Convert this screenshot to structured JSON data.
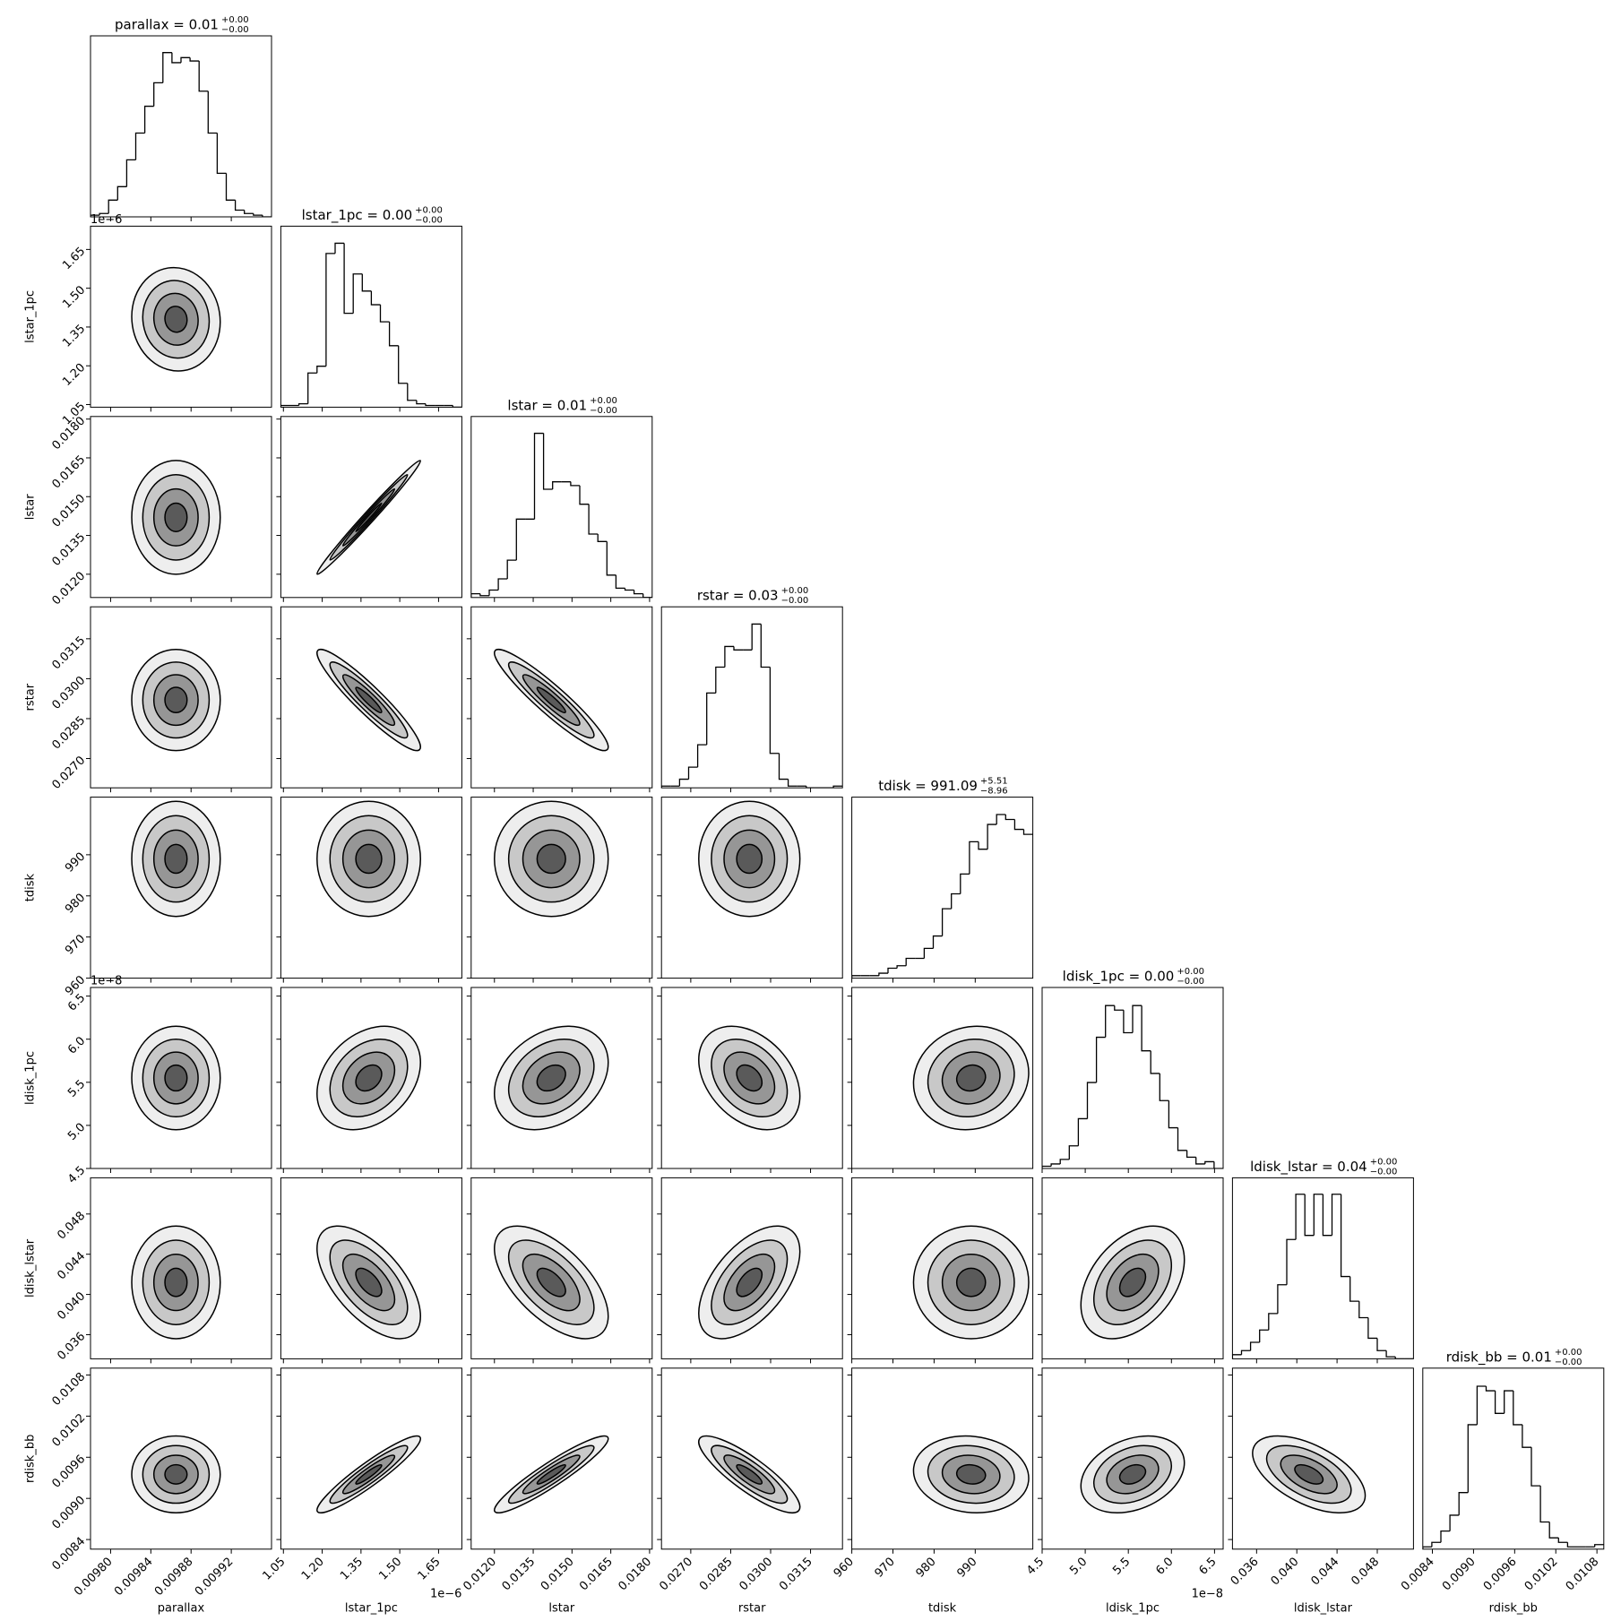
{
  "chart_data": {
    "type": "corner",
    "color": "#000000",
    "levels": [
      0.5,
      1,
      1.5,
      2
    ],
    "parameters": [
      {
        "name": "parallax",
        "title": {
          "text": "parallax = 0.01",
          "sup": "+0.00",
          "sub": "−0.00"
        },
        "xlim": [
          0.00978,
          0.00996
        ],
        "xticks": [
          {
            "value": 0.0098,
            "label": "0.00980"
          },
          0.00984,
          0.00988,
          0.00992
        ],
        "bins": [
          0.00978,
          0.009789,
          0.009798,
          0.009807,
          0.009816,
          0.009825,
          0.009834,
          0.009843,
          0.009852,
          0.009861,
          0.00987,
          0.009879,
          0.009888,
          0.009897,
          0.009906,
          0.009915,
          0.009924,
          0.009933,
          0.009942,
          0.009951,
          0.00996
        ],
        "counts": [
          1,
          2,
          10,
          18,
          34,
          50,
          66,
          80,
          98,
          92,
          95,
          93,
          75,
          50,
          26,
          10,
          4,
          2,
          1,
          0
        ],
        "ylim": [
          0,
          108
        ],
        "mean": 0.009865,
        "sd": 2.2e-05
      },
      {
        "name": "lstar_1pc",
        "title": {
          "text": "lstar_1pc = 0.00",
          "sup": "+0.00",
          "sub": "−0.00"
        },
        "offset_label": "1e−6",
        "xlim": [
          1.04,
          1.74
        ],
        "xticks": [
          1.05,
          {
            "value": 1.2,
            "label": "1.20"
          },
          1.35,
          {
            "value": 1.5,
            "label": "1.50"
          },
          1.65
        ],
        "bins": [
          1.04,
          1.075,
          1.11,
          1.145,
          1.18,
          1.215,
          1.25,
          1.285,
          1.32,
          1.355,
          1.39,
          1.425,
          1.46,
          1.495,
          1.53,
          1.565,
          1.6,
          1.635,
          1.67,
          1.705,
          1.74
        ],
        "counts": [
          1,
          1,
          2,
          20,
          24,
          90,
          96,
          55,
          78,
          68,
          60,
          50,
          36,
          14,
          4,
          2,
          1,
          1,
          1,
          0
        ],
        "ylim": [
          0,
          106
        ],
        "mean": 1.38,
        "sd": 0.1
      },
      {
        "name": "lstar",
        "title": {
          "text": "lstar = 0.01",
          "sup": "+0.00",
          "sub": "−0.00"
        },
        "xlim": [
          0.0111,
          0.0181
        ],
        "xticks": [
          {
            "value": 0.012,
            "label": "0.0120"
          },
          0.0135,
          {
            "value": 0.015,
            "label": "0.0150"
          },
          0.0165,
          {
            "value": 0.018,
            "label": "0.0180"
          }
        ],
        "bins": [
          0.0111,
          0.01145,
          0.0118,
          0.01215,
          0.0125,
          0.01285,
          0.0132,
          0.01355,
          0.0139,
          0.01425,
          0.0146,
          0.01495,
          0.0153,
          0.01565,
          0.016,
          0.01635,
          0.0167,
          0.01705,
          0.0174,
          0.01775,
          0.0181
        ],
        "counts": [
          2,
          1,
          4,
          10,
          20,
          42,
          42,
          88,
          58,
          62,
          62,
          60,
          50,
          34,
          30,
          12,
          5,
          4,
          2,
          0
        ],
        "ylim": [
          0,
          97
        ],
        "mean": 0.0142,
        "sd": 0.0011
      },
      {
        "name": "rstar",
        "title": {
          "text": "rstar = 0.03",
          "sup": "+0.00",
          "sub": "−0.00"
        },
        "xlim": [
          0.0259,
          0.0327
        ],
        "xticks": [
          {
            "value": 0.027,
            "label": "0.0270"
          },
          0.0285,
          {
            "value": 0.03,
            "label": "0.0300"
          },
          0.0315
        ],
        "bins": [
          0.0259,
          0.02624,
          0.02658,
          0.02692,
          0.02726,
          0.0276,
          0.02794,
          0.02828,
          0.02862,
          0.02896,
          0.0293,
          0.02964,
          0.02998,
          0.03032,
          0.03066,
          0.031,
          0.03134,
          0.03168,
          0.03202,
          0.03236,
          0.0327
        ],
        "counts": [
          1,
          1,
          5,
          12,
          25,
          55,
          70,
          82,
          80,
          80,
          95,
          70,
          20,
          5,
          1,
          1,
          0,
          0,
          0,
          1
        ],
        "ylim": [
          0,
          105
        ],
        "mean": 0.0292,
        "sd": 0.00095
      },
      {
        "name": "tdisk",
        "title": {
          "text": "tdisk = 991.09",
          "sup": "+5.51",
          "sub": "−8.96"
        },
        "xlim": [
          960,
          1004
        ],
        "xticks": [
          960,
          970,
          980,
          990
        ],
        "bins": [
          960,
          962.2,
          964.4,
          966.6,
          968.8,
          971,
          973.2,
          975.4,
          977.6,
          979.8,
          982,
          984.2,
          986.4,
          988.6,
          990.8,
          993,
          995.2,
          997.4,
          999.6,
          1001.8,
          1004
        ],
        "counts": [
          1,
          1,
          1,
          2,
          4,
          5,
          8,
          8,
          12,
          17,
          28,
          34,
          42,
          55,
          52,
          62,
          66,
          64,
          60,
          58
        ],
        "ylim": [
          0,
          73
        ],
        "mean": 989,
        "sd": 7
      },
      {
        "name": "ldisk_1pc",
        "title": {
          "text": "ldisk_1pc = 0.00",
          "sup": "+0.00",
          "sub": "−0.00"
        },
        "offset_label": "1e−8",
        "xlim": [
          4.5,
          6.6
        ],
        "xticks": [
          4.5,
          {
            "value": 5,
            "label": "5.0"
          },
          5.5,
          {
            "value": 6,
            "label": "6.0"
          },
          6.5
        ],
        "bins": [
          4.5,
          4.605,
          4.71,
          4.815,
          4.92,
          5.025,
          5.13,
          5.235,
          5.34,
          5.445,
          5.55,
          5.655,
          5.76,
          5.865,
          5.97,
          6.075,
          6.18,
          6.285,
          6.39,
          6.495,
          6.6
        ],
        "counts": [
          1,
          2,
          4,
          10,
          22,
          38,
          58,
          72,
          70,
          60,
          72,
          52,
          42,
          30,
          18,
          8,
          5,
          2,
          3,
          0
        ],
        "ylim": [
          0,
          80
        ],
        "mean": 5.55,
        "sd": 0.3
      },
      {
        "name": "ldisk_lstar",
        "title": {
          "text": "ldisk_lstar = 0.04",
          "sup": "+0.00",
          "sub": "−0.00"
        },
        "xlim": [
          0.0336,
          0.0516
        ],
        "xticks": [
          0.036,
          {
            "value": 0.04,
            "label": "0.040"
          },
          0.044,
          0.048
        ],
        "bins": [
          0.0336,
          0.0345,
          0.0354,
          0.0363,
          0.0372,
          0.0381,
          0.039,
          0.0399,
          0.0408,
          0.0417,
          0.0426,
          0.0435,
          0.0444,
          0.0453,
          0.0462,
          0.0471,
          0.048,
          0.0489,
          0.0498,
          0.0507,
          0.0516
        ],
        "counts": [
          2,
          4,
          8,
          14,
          22,
          36,
          58,
          80,
          60,
          80,
          60,
          80,
          40,
          28,
          20,
          10,
          4,
          1,
          0,
          0
        ],
        "ylim": [
          0,
          88
        ],
        "mean": 0.0412,
        "sd": 0.0028
      },
      {
        "name": "rdisk_bb",
        "title": {
          "text": "rdisk_bb = 0.01",
          "sup": "+0.00",
          "sub": "−0.00"
        },
        "xlim": [
          0.00826,
          0.0109
        ],
        "xticks": [
          0.0084,
          {
            "value": 0.009,
            "label": "0.0090"
          },
          0.0096,
          0.0102,
          0.0108
        ],
        "bins": [
          0.00826,
          0.008392,
          0.008524,
          0.008656,
          0.008788,
          0.00892,
          0.009052,
          0.009184,
          0.009316,
          0.009448,
          0.00958,
          0.009712,
          0.009844,
          0.009976,
          0.010108,
          0.01024,
          0.010372,
          0.010504,
          0.010636,
          0.010768,
          0.0109
        ],
        "counts": [
          1,
          3,
          8,
          15,
          25,
          55,
          72,
          70,
          60,
          70,
          55,
          45,
          28,
          12,
          5,
          3,
          1,
          1,
          1,
          2
        ],
        "ylim": [
          0,
          80
        ],
        "mean": 0.00935,
        "sd": 0.00028
      }
    ],
    "correlations": [
      [
        -0.05
      ],
      [
        0.0,
        0.99
      ],
      [
        0.0,
        -0.93,
        -0.93
      ],
      [
        0.0,
        0.0,
        0.0,
        0.0
      ],
      [
        0.0,
        0.3,
        0.3,
        -0.35,
        0.1
      ],
      [
        0.0,
        -0.6,
        -0.6,
        0.55,
        0.0,
        0.4
      ],
      [
        0.0,
        0.93,
        0.93,
        -0.85,
        -0.1,
        0.3,
        -0.55
      ]
    ]
  }
}
